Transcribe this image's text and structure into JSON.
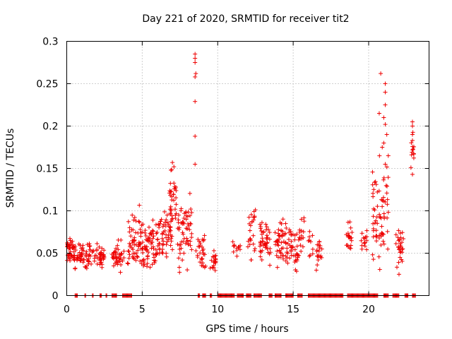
{
  "chart_data": {
    "type": "scatter",
    "title": "Day 221 of 2020, SRMTID for receiver tit2",
    "xlabel": "GPS time / hours",
    "ylabel": "SRMTID / TECUs",
    "xlim": [
      0,
      24
    ],
    "ylim": [
      0,
      0.3
    ],
    "xticks": [
      0,
      5,
      10,
      15,
      20
    ],
    "xtick_labels": [
      "0",
      "5",
      "10",
      "15",
      "20"
    ],
    "yticks": [
      0,
      0.05,
      0.1,
      0.15,
      0.2,
      0.25,
      0.3
    ],
    "ytick_labels": [
      "0",
      "0.05",
      "0.1",
      "0.15",
      "0.2",
      "0.25",
      "0.3"
    ],
    "grid": true,
    "marker": "+",
    "color": "#ee0000",
    "series": [
      {
        "name": "SRMTID",
        "clusters": [
          {
            "x": [
              0.0,
              0.5
            ],
            "y": [
              0.03,
              0.08
            ],
            "n": 40
          },
          {
            "x": [
              0.5,
              1.5
            ],
            "y": [
              0.025,
              0.07
            ],
            "n": 55
          },
          {
            "x": [
              1.5,
              2.5
            ],
            "y": [
              0.03,
              0.065
            ],
            "n": 45
          },
          {
            "x": [
              3.0,
              3.8
            ],
            "y": [
              0.02,
              0.07
            ],
            "n": 40
          },
          {
            "x": [
              4.0,
              5.0
            ],
            "y": [
              0.02,
              0.11
            ],
            "n": 60
          },
          {
            "x": [
              5.0,
              6.0
            ],
            "y": [
              0.02,
              0.1
            ],
            "n": 65
          },
          {
            "x": [
              6.0,
              7.0
            ],
            "y": [
              0.03,
              0.12
            ],
            "n": 60
          },
          {
            "x": [
              6.8,
              7.3
            ],
            "y": [
              0.06,
              0.16
            ],
            "n": 30
          },
          {
            "x": [
              7.3,
              8.3
            ],
            "y": [
              0.02,
              0.13
            ],
            "n": 60
          },
          {
            "x": [
              8.5,
              9.2
            ],
            "y": [
              0.02,
              0.08
            ],
            "n": 30
          },
          {
            "x": [
              9.5,
              9.9
            ],
            "y": [
              0.02,
              0.06
            ],
            "n": 20
          },
          {
            "x": [
              11.0,
              11.5
            ],
            "y": [
              0.04,
              0.07
            ],
            "n": 12
          },
          {
            "x": [
              12.0,
              12.5
            ],
            "y": [
              0.03,
              0.115
            ],
            "n": 25
          },
          {
            "x": [
              12.8,
              13.5
            ],
            "y": [
              0.03,
              0.1
            ],
            "n": 45
          },
          {
            "x": [
              13.8,
              15.0
            ],
            "y": [
              0.02,
              0.1
            ],
            "n": 70
          },
          {
            "x": [
              15.0,
              15.4
            ],
            "y": [
              0.015,
              0.08
            ],
            "n": 20
          },
          {
            "x": [
              15.4,
              15.8
            ],
            "y": [
              0.04,
              0.11
            ],
            "n": 15
          },
          {
            "x": [
              16.0,
              16.3
            ],
            "y": [
              0.04,
              0.085
            ],
            "n": 10
          },
          {
            "x": [
              16.5,
              16.9
            ],
            "y": [
              0.025,
              0.08
            ],
            "n": 20
          },
          {
            "x": [
              18.5,
              18.9
            ],
            "y": [
              0.04,
              0.1
            ],
            "n": 20
          },
          {
            "x": [
              19.5,
              19.9
            ],
            "y": [
              0.045,
              0.085
            ],
            "n": 15
          },
          {
            "x": [
              20.2,
              21.3
            ],
            "y": [
              0.02,
              0.18
            ],
            "n": 70
          },
          {
            "x": [
              21.8,
              22.3
            ],
            "y": [
              0.02,
              0.09
            ],
            "n": 30
          },
          {
            "x": [
              22.8,
              23.0
            ],
            "y": [
              0.14,
              0.2
            ],
            "n": 10
          }
        ],
        "highlights": [
          {
            "x": 8.5,
            "y": 0.285
          },
          {
            "x": 8.5,
            "y": 0.28
          },
          {
            "x": 8.5,
            "y": 0.275
          },
          {
            "x": 8.55,
            "y": 0.262
          },
          {
            "x": 8.5,
            "y": 0.258
          },
          {
            "x": 8.5,
            "y": 0.229
          },
          {
            "x": 8.5,
            "y": 0.188
          },
          {
            "x": 8.5,
            "y": 0.155
          },
          {
            "x": 20.8,
            "y": 0.262
          },
          {
            "x": 21.1,
            "y": 0.25
          },
          {
            "x": 21.1,
            "y": 0.24
          },
          {
            "x": 21.1,
            "y": 0.225
          },
          {
            "x": 20.7,
            "y": 0.215
          },
          {
            "x": 21.0,
            "y": 0.21
          },
          {
            "x": 21.1,
            "y": 0.202
          },
          {
            "x": 21.2,
            "y": 0.19
          },
          {
            "x": 21.0,
            "y": 0.18
          },
          {
            "x": 21.3,
            "y": 0.165
          },
          {
            "x": 20.9,
            "y": 0.175
          },
          {
            "x": 21.1,
            "y": 0.155
          },
          {
            "x": 22.9,
            "y": 0.205
          },
          {
            "x": 22.9,
            "y": 0.2
          },
          {
            "x": 22.9,
            "y": 0.19
          },
          {
            "x": 22.9,
            "y": 0.183
          },
          {
            "x": 22.9,
            "y": 0.172
          },
          {
            "x": 22.8,
            "y": 0.151
          },
          {
            "x": 22.9,
            "y": 0.143
          },
          {
            "x": 7.0,
            "y": 0.157
          },
          {
            "x": 7.1,
            "y": 0.152
          },
          {
            "x": 6.9,
            "y": 0.148
          }
        ],
        "zero_ranges": [
          [
            0.55,
            0.7
          ],
          [
            1.2,
            1.25
          ],
          [
            1.7,
            1.75
          ],
          [
            2.2,
            2.3
          ],
          [
            2.6,
            2.65
          ],
          [
            3.0,
            3.3
          ],
          [
            3.7,
            4.3
          ],
          [
            8.7,
            8.8
          ],
          [
            9.0,
            9.2
          ],
          [
            9.5,
            9.6
          ],
          [
            10.0,
            11.1
          ],
          [
            11.3,
            11.7
          ],
          [
            11.9,
            12.2
          ],
          [
            12.4,
            12.9
          ],
          [
            13.4,
            13.6
          ],
          [
            13.8,
            14.2
          ],
          [
            14.5,
            15.0
          ],
          [
            15.3,
            15.6
          ],
          [
            16.0,
            18.3
          ],
          [
            18.6,
            20.6
          ],
          [
            21.0,
            21.3
          ],
          [
            21.6,
            22.0
          ],
          [
            22.4,
            22.6
          ],
          [
            22.9,
            23.1
          ]
        ]
      }
    ]
  }
}
